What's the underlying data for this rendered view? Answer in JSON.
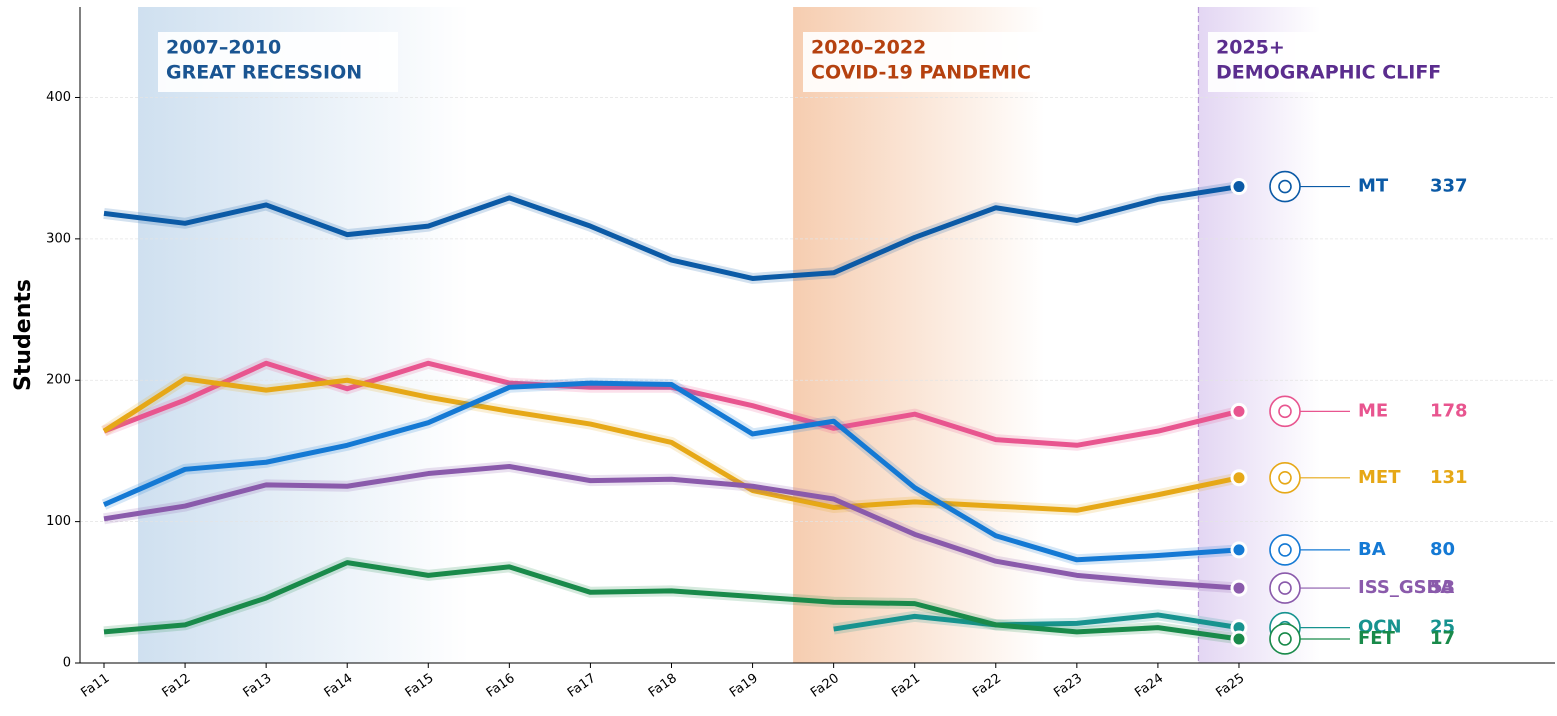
{
  "chart_data": {
    "type": "line",
    "y_label": "Students",
    "categories": [
      "Fa11",
      "Fa12",
      "Fa13",
      "Fa14",
      "Fa15",
      "Fa16",
      "Fa17",
      "Fa18",
      "Fa19",
      "Fa20",
      "Fa21",
      "Fa22",
      "Fa23",
      "Fa24",
      "Fa25"
    ],
    "ylim": [
      0,
      464
    ],
    "yticks": [
      0,
      100,
      200,
      300,
      400
    ],
    "grid": true,
    "annotations": [
      {
        "lines": [
          "2007–2010",
          "GREAT RECESSION"
        ],
        "color": "#1a5592"
      },
      {
        "lines": [
          "2020–2022",
          "COVID-19 PANDEMIC"
        ],
        "color": "#b5410f"
      },
      {
        "lines": [
          "2025+",
          "DEMOGRAPHIC CLIFF"
        ],
        "color": "#5b2d8e"
      }
    ],
    "series": [
      {
        "name": "MT",
        "color": "#0b5aa6",
        "values": [
          318,
          311,
          324,
          303,
          309,
          329,
          309,
          285,
          272,
          276,
          301,
          322,
          313,
          328,
          337
        ]
      },
      {
        "name": "ME",
        "color": "#e8558f",
        "values": [
          164,
          186,
          212,
          194,
          212,
          198,
          195,
          195,
          182,
          166,
          176,
          158,
          154,
          164,
          178
        ]
      },
      {
        "name": "MET",
        "color": "#e6a817",
        "values": [
          164,
          201,
          193,
          200,
          188,
          178,
          169,
          156,
          122,
          110,
          114,
          111,
          108,
          119,
          131
        ]
      },
      {
        "name": "BA",
        "color": "#1479d4",
        "values": [
          112,
          137,
          142,
          154,
          170,
          195,
          198,
          197,
          162,
          171,
          124,
          90,
          73,
          76,
          80
        ]
      },
      {
        "name": "ISS_GSBA",
        "color": "#8a5aab",
        "values": [
          102,
          111,
          126,
          125,
          134,
          139,
          129,
          130,
          125,
          116,
          91,
          72,
          62,
          57,
          53
        ]
      },
      {
        "name": "OCN",
        "color": "#17938f",
        "values": [
          null,
          null,
          null,
          null,
          null,
          null,
          null,
          null,
          null,
          24,
          33,
          27,
          28,
          34,
          25
        ]
      },
      {
        "name": "FET",
        "color": "#198a4a",
        "values": [
          22,
          27,
          46,
          71,
          62,
          68,
          50,
          51,
          47,
          43,
          42,
          27,
          22,
          25,
          17
        ]
      }
    ]
  }
}
